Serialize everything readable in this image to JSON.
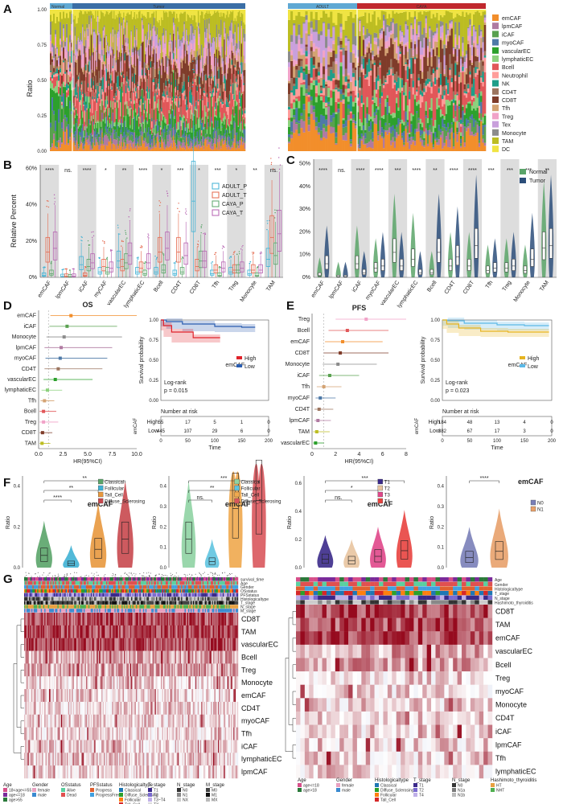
{
  "palette": {
    "emCAF": "#f28e2b",
    "lpmCAF": "#b07aa1",
    "iCAF": "#59a14f",
    "myoCAF": "#4e79a7",
    "vascularEC": "#2ca02c",
    "lymphaticEC": "#8cd17d",
    "Bcell": "#e15759",
    "Neutrophil": "#ff9d9a",
    "NK": "#1f9e89",
    "CD4T": "#9c755f",
    "CD8T": "#7f3c2a",
    "Tfh": "#d4a373",
    "Treg": "#f1a3c8",
    "Tex": "#c9a0dc",
    "Monocyte": "#8c8c8c",
    "TAM": "#bcbd22",
    "DC": "#f0e442"
  },
  "panelA": {
    "letter": "A",
    "ylabel": "Ratio",
    "yticks": [
      "0.00",
      "0.25",
      "0.50",
      "0.75",
      "1.00"
    ],
    "left_groups": [
      "Normal",
      "Tumor"
    ],
    "right_groups": [
      "ADULT",
      "CAYA"
    ],
    "legend": [
      "emCAF",
      "lpmCAF",
      "iCAF",
      "myoCAF",
      "vascularEC",
      "lymphaticEC",
      "Bcell",
      "Neutrophil",
      "NK",
      "CD4T",
      "CD8T",
      "Tfh",
      "Treg",
      "Tex",
      "Monocyte",
      "TAM",
      "DC"
    ]
  },
  "panelB": {
    "letter": "B",
    "ylabel": "Relative Percent",
    "yticks": [
      "0%",
      "20%",
      "40%",
      "60%"
    ],
    "categories": [
      "emCAF",
      "lpmCAF",
      "iCAF",
      "myCAF",
      "vascularEC",
      "lymphaticEC",
      "Bcell",
      "CD4T",
      "CD8T",
      "Tfh",
      "Treg",
      "Monocyte",
      "TAM"
    ],
    "sig": [
      "****",
      "ns.",
      "****",
      "*",
      "**",
      "****",
      "*",
      "***",
      "*",
      "***",
      "*",
      "**",
      "ns."
    ],
    "legend": [
      {
        "name": "ADULT_P",
        "color": "#3fb1d4"
      },
      {
        "name": "ADULT_T",
        "color": "#e4684d"
      },
      {
        "name": "CAYA_P",
        "color": "#5aa469"
      },
      {
        "name": "CAYA_T",
        "color": "#b561b0"
      }
    ],
    "medians": [
      [
        1,
        14,
        2,
        16
      ],
      [
        0.5,
        0.6,
        0.4,
        0.6
      ],
      [
        7,
        1,
        6,
        8
      ],
      [
        3,
        6,
        3,
        5
      ],
      [
        9,
        6,
        8,
        12
      ],
      [
        3,
        5,
        2,
        8
      ],
      [
        3,
        14,
        4,
        16
      ],
      [
        2,
        14,
        3,
        12
      ],
      [
        42,
        6,
        9,
        9
      ],
      [
        2,
        4,
        1,
        5
      ],
      [
        3,
        4,
        4,
        5
      ],
      [
        2,
        4,
        1,
        4
      ],
      [
        10,
        22,
        12,
        24
      ]
    ]
  },
  "panelC": {
    "letter": "C",
    "yticks": [
      "0%",
      "10%",
      "20%",
      "30%",
      "40%",
      "50%"
    ],
    "categories": [
      "emCAF",
      "lpmCAF",
      "iCAF",
      "myoCAF",
      "vascularEC",
      "lymphaticEC",
      "Bcell",
      "CD4T",
      "CD8T",
      "Tfh",
      "Treg",
      "Monocyte",
      "TAM"
    ],
    "sig": [
      "****",
      "ns.",
      "****",
      "****",
      "***",
      "****",
      "**",
      "****",
      "****",
      "***",
      "***",
      "***",
      "**"
    ],
    "legend": [
      {
        "name": "Normal",
        "color": "#5aa469"
      },
      {
        "name": "Tumor",
        "color": "#2c4e7a"
      }
    ],
    "medians": [
      [
        1,
        6
      ],
      [
        0.3,
        0.3
      ],
      [
        6,
        2
      ],
      [
        4,
        5
      ],
      [
        11,
        5
      ],
      [
        8,
        2
      ],
      [
        2,
        11
      ],
      [
        5,
        9
      ],
      [
        5,
        14
      ],
      [
        3,
        4
      ],
      [
        4,
        5
      ],
      [
        3,
        8
      ],
      [
        13,
        14
      ]
    ]
  },
  "panelD": {
    "letter": "D",
    "title": "OS",
    "xlabel": "HR(95%CI)",
    "xticks": [
      "0.0",
      "2.5",
      "5.0",
      "7.5",
      "10.0"
    ],
    "forest": [
      {
        "label": "emCAF",
        "hr": 3.3,
        "lo": 1.2,
        "hi": 10.5,
        "color": "#f28e2b"
      },
      {
        "label": "iCAF",
        "hr": 2.9,
        "lo": 1.1,
        "hi": 8.0,
        "color": "#59a14f"
      },
      {
        "label": "Monocyte",
        "hr": 2.6,
        "lo": 0.8,
        "hi": 8.5,
        "color": "#8c8c8c"
      },
      {
        "label": "lpmCAF",
        "hr": 2.3,
        "lo": 0.6,
        "hi": 7.5,
        "color": "#b07aa1"
      },
      {
        "label": "myoCAF",
        "hr": 2.2,
        "lo": 0.7,
        "hi": 7.0,
        "color": "#4e79a7"
      },
      {
        "label": "CD4T",
        "hr": 2.0,
        "lo": 0.6,
        "hi": 6.5,
        "color": "#9c755f"
      },
      {
        "label": "vascularEC",
        "hr": 1.7,
        "lo": 0.5,
        "hi": 5.5,
        "color": "#2ca02c"
      },
      {
        "label": "lymphaticEC",
        "hr": 0.9,
        "lo": 0.3,
        "hi": 2.4,
        "color": "#8cd17d"
      },
      {
        "label": "Tfh",
        "hr": 0.6,
        "lo": 0.2,
        "hi": 1.6,
        "color": "#d4a373"
      },
      {
        "label": "Bcell",
        "hr": 0.5,
        "lo": 0.1,
        "hi": 1.8,
        "color": "#e15759"
      },
      {
        "label": "Treg",
        "hr": 0.5,
        "lo": 0.1,
        "hi": 2.0,
        "color": "#f1a3c8"
      },
      {
        "label": "CD8T",
        "hr": 0.4,
        "lo": 0.1,
        "hi": 1.4,
        "color": "#7f3c2a"
      },
      {
        "label": "TAM",
        "hr": 0.35,
        "lo": 0.1,
        "hi": 1.2,
        "color": "#bcbd22"
      }
    ],
    "km": {
      "ylabel": "Survival probability",
      "gene": "emCAF",
      "high": "High",
      "low": "Low",
      "high_color": "#e0222a",
      "low_color": "#2a5db0",
      "logrank": "Log-rank",
      "p": "p = 0.015",
      "yticks": [
        "0.00",
        "0.25",
        "0.50",
        "0.75",
        "1.00"
      ],
      "xticks": [
        "0",
        "50",
        "100",
        "150",
        "200"
      ],
      "xlabel": "Time",
      "risk_title": "Number at risk",
      "risk_high": [
        "55",
        "17",
        "5",
        "1",
        "0"
      ],
      "risk_low": [
        "445",
        "107",
        "29",
        "6",
        "0"
      ]
    }
  },
  "panelE": {
    "letter": "E",
    "title": "PFS",
    "xlabel": "HR(95%CI)",
    "xticks": [
      "0",
      "2",
      "4",
      "6",
      "8"
    ],
    "forest": [
      {
        "label": "Treg",
        "hr": 4.6,
        "lo": 2.0,
        "hi": 8.2,
        "color": "#f1a3c8"
      },
      {
        "label": "Bcell",
        "hr": 3.0,
        "lo": 1.4,
        "hi": 6.5,
        "color": "#e15759"
      },
      {
        "label": "emCAF",
        "hr": 2.6,
        "lo": 1.1,
        "hi": 6.0,
        "color": "#f28e2b"
      },
      {
        "label": "CD8T",
        "hr": 2.4,
        "lo": 1.0,
        "hi": 6.5,
        "color": "#7f3c2a"
      },
      {
        "label": "Monocyte",
        "hr": 2.2,
        "lo": 0.9,
        "hi": 5.5,
        "color": "#8c8c8c"
      },
      {
        "label": "iCAF",
        "hr": 1.5,
        "lo": 0.6,
        "hi": 4.0,
        "color": "#59a14f"
      },
      {
        "label": "Tfh",
        "hr": 1.0,
        "lo": 0.4,
        "hi": 2.5,
        "color": "#d4a373"
      },
      {
        "label": "myoCAF",
        "hr": 0.7,
        "lo": 0.3,
        "hi": 2.0,
        "color": "#4e79a7"
      },
      {
        "label": "CD4T",
        "hr": 0.6,
        "lo": 0.2,
        "hi": 1.8,
        "color": "#9c755f"
      },
      {
        "label": "lpmCAF",
        "hr": 0.5,
        "lo": 0.2,
        "hi": 1.6,
        "color": "#b07aa1"
      },
      {
        "label": "TAM",
        "hr": 0.4,
        "lo": 0.1,
        "hi": 1.5,
        "color": "#bcbd22"
      },
      {
        "label": "vascularEC",
        "hr": 0.3,
        "lo": 0.1,
        "hi": 1.0,
        "color": "#2ca02c"
      }
    ],
    "km": {
      "ylabel": "Survival probability",
      "gene": "emCAF",
      "high": "High",
      "low": "Low",
      "high_color": "#e6b421",
      "low_color": "#5bb8e6",
      "logrank": "Log-rank",
      "p": "p = 0.023",
      "yticks": [
        "0.00",
        "0.25",
        "0.50",
        "0.75",
        "1.00"
      ],
      "xticks": [
        "0",
        "50",
        "100",
        "150",
        "200"
      ],
      "xlabel": "Time",
      "risk_title": "Number at risk",
      "risk_high": [
        "184",
        "48",
        "13",
        "4",
        "0"
      ],
      "risk_low": [
        "382",
        "67",
        "17",
        "3",
        "0"
      ]
    }
  },
  "panelF": {
    "letter": "F",
    "ylabel": "Ratio",
    "plots": [
      {
        "gene": "emCAF",
        "groups": [
          "Classical",
          "Follicular",
          "Tall_Cell",
          "Diffuse_Sclerosing"
        ],
        "colors": [
          "#5aa469",
          "#3fb1d4",
          "#e8983e",
          "#c8484e"
        ],
        "yticks": [
          "0.0",
          "0.2",
          "0.4"
        ],
        "ymax": 0.45,
        "medians": [
          0.06,
          0.02,
          0.09,
          0.14
        ],
        "sig": [
          "**",
          "**",
          "****"
        ]
      },
      {
        "gene": "emCAF",
        "groups": [
          "Classical",
          "Follicular",
          "Tall_Cell",
          "Diffuse_Sclerosing"
        ],
        "colors": [
          "#8fd3a3",
          "#5fc4e0",
          "#f0a94e",
          "#d9575c"
        ],
        "yticks": [
          "0.0",
          "0.1",
          "0.2",
          "0.3",
          "0.4"
        ],
        "ymax": 0.45,
        "medians": [
          0.14,
          0.03,
          0.29,
          0.33
        ],
        "sig": [
          "***",
          "**",
          "ns."
        ]
      },
      {
        "gene": "emCAF",
        "groups": [
          "T1",
          "T2",
          "T3",
          "T4"
        ],
        "colors": [
          "#3b2a8a",
          "#e8c4a0",
          "#e0478a",
          "#e8433f"
        ],
        "yticks": [
          "0.0",
          "0.2",
          "0.4",
          "0.6"
        ],
        "ymax": 0.65,
        "medians": [
          0.06,
          0.05,
          0.08,
          0.12
        ],
        "sig": [
          "***",
          "*",
          "ns."
        ]
      },
      {
        "gene": "emCAF",
        "groups": [
          "N0",
          "N1"
        ],
        "colors": [
          "#7a7fb8",
          "#e8a16b"
        ],
        "yticks": [
          "0.0",
          "0.1",
          "0.2",
          "0.3",
          "0.4"
        ],
        "ymax": 0.45,
        "medians": [
          0.05,
          0.08
        ],
        "sig": [
          "****"
        ]
      }
    ]
  },
  "panelG": {
    "letter": "G",
    "left_rows": [
      "CD8T",
      "TAM",
      "vascularEC",
      "Bcell",
      "Treg",
      "Monocyte",
      "emCAF",
      "CD4T",
      "myoCAF",
      "Tfh",
      "iCAF",
      "lymphaticEC",
      "lpmCAF"
    ],
    "left_ann": [
      "survival_time",
      "Age",
      "Gender",
      "OSstatus",
      "PFSstatus",
      "Histologicaltype",
      "T_stage",
      "N_stage",
      "M_stage"
    ],
    "right_rows": [
      "CD8T",
      "TAM",
      "emCAF",
      "vascularEC",
      "Bcell",
      "Treg",
      "myoCAF",
      "Monocyte",
      "CD4T",
      "iCAF",
      "lpmCAF",
      "Tfh",
      "lymphaticEC"
    ],
    "right_ann": [
      "Age",
      "Gender",
      "Histologicaltype",
      "T_stage",
      "N_stage",
      "Hashimoto_thyroiditis"
    ],
    "left_legend": [
      {
        "title": "Age",
        "items": [
          [
            "#d64f8a",
            "18<age<=55"
          ],
          [
            "#7a2a9a",
            "age<=18"
          ],
          [
            "#2a7a3a",
            "age>55"
          ]
        ]
      },
      {
        "title": "Gender",
        "items": [
          [
            "#e8a0c0",
            "female"
          ],
          [
            "#3a8ad0",
            "male"
          ]
        ]
      },
      {
        "title": "OSstatus",
        "items": [
          [
            "#5ad0a0",
            "Alive"
          ],
          [
            "#e05050",
            "Dead"
          ]
        ]
      },
      {
        "title": "PFSstatus",
        "items": [
          [
            "#e06030",
            "Progress"
          ],
          [
            "#40a0e0",
            "ProgressFree"
          ]
        ]
      },
      {
        "title": "Histologicaltype",
        "items": [
          [
            "#1f77b4",
            "Classical"
          ],
          [
            "#2ca02c",
            "Diffuse_Sclerosing"
          ],
          [
            "#ff7f0e",
            "Follicular"
          ],
          [
            "#d62728",
            "Tall_Cell"
          ]
        ]
      },
      {
        "title": "T_stage",
        "items": [
          [
            "#3b2a8a",
            "T1"
          ],
          [
            "#7a6ad0",
            "T2"
          ],
          [
            "#c0b0e8",
            "T3~T4"
          ],
          [
            "#dddddd",
            "TX"
          ]
        ]
      },
      {
        "title": "N_stage",
        "items": [
          [
            "#333333",
            "N0"
          ],
          [
            "#888888",
            "N1"
          ],
          [
            "#cccccc",
            "NX"
          ]
        ]
      },
      {
        "title": "M_stage",
        "items": [
          [
            "#444444",
            "M0"
          ],
          [
            "#111111",
            "M1"
          ],
          [
            "#bbbbbb",
            "MX"
          ]
        ]
      }
    ],
    "right_legend": [
      {
        "title": "Age",
        "items": [
          [
            "#d64f8a",
            "age<=18"
          ],
          [
            "#2a7a3a",
            "age>18"
          ]
        ]
      },
      {
        "title": "Gender",
        "items": [
          [
            "#e8a0c0",
            "female"
          ],
          [
            "#3a8ad0",
            "male"
          ]
        ]
      },
      {
        "title": "Histologicaltype",
        "items": [
          [
            "#1f77b4",
            "Classical"
          ],
          [
            "#2ca02c",
            "Diffuse_Sclerosing"
          ],
          [
            "#ff7f0e",
            "Follicular"
          ],
          [
            "#d62728",
            "Tall_Cell"
          ]
        ]
      },
      {
        "title": "T_stage",
        "items": [
          [
            "#3b2a8a",
            "T1"
          ],
          [
            "#7a6ad0",
            "T2"
          ],
          [
            "#c0b0e8",
            "T4"
          ]
        ]
      },
      {
        "title": "N_stage",
        "items": [
          [
            "#333333",
            "N0"
          ],
          [
            "#7a7a7a",
            "N1a"
          ],
          [
            "#bbbbbb",
            "N1b"
          ]
        ]
      },
      {
        "title": "Hashimoto_thyroiditis",
        "items": [
          [
            "#e8a040",
            "HT"
          ],
          [
            "#50b050",
            "NHT"
          ]
        ]
      }
    ]
  }
}
